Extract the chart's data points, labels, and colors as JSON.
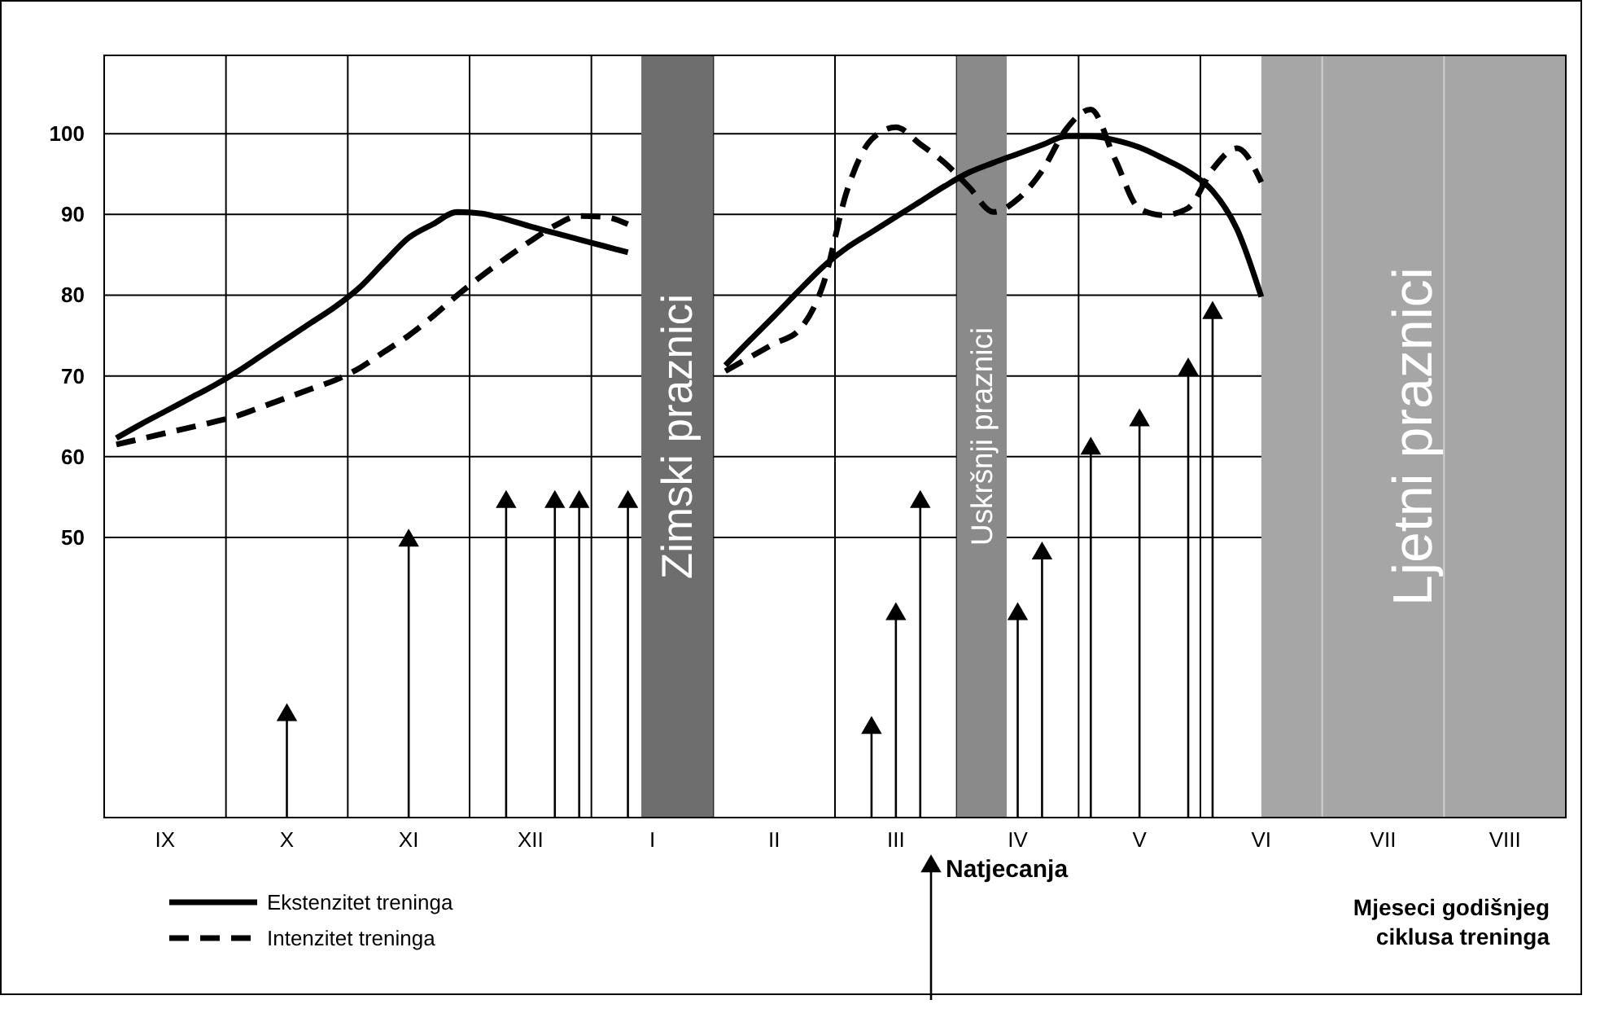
{
  "chart_data": {
    "type": "line",
    "xlabel": "Mjeseci godišnjeg ciklusa treninga",
    "ylim": [
      15.3,
      109.7
    ],
    "categories": [
      null,
      null,
      "IX",
      null,
      null,
      null,
      null,
      "X",
      null,
      null,
      null,
      null,
      "XI",
      null,
      null,
      null,
      null,
      "XII",
      null,
      null,
      null,
      null,
      "I",
      null,
      null,
      null,
      null,
      "II",
      null,
      null,
      null,
      null,
      "III",
      null,
      null,
      null,
      null,
      "IV",
      null,
      null,
      null,
      null,
      "V",
      null,
      null,
      null,
      null,
      "VI",
      null,
      null,
      null,
      null,
      "VII",
      null,
      null,
      null,
      null,
      "VIII",
      null,
      null
    ],
    "yticks": [
      50,
      60,
      70,
      80,
      90,
      100
    ],
    "grid": true,
    "legend": "bottom",
    "annotations": [
      "Zimski praznici",
      "Uskršnji praznici",
      "Ljetni praznici"
    ],
    "series": [
      {
        "name": "Ekstenzitet treninga",
        "color": "#000000",
        "line_style": "solid",
        "values": [
          62.3,
          64.0,
          65.6,
          67.2,
          68.8,
          70.6,
          72.6,
          74.6,
          76.6,
          78.6,
          81.0,
          84.1,
          87.1,
          88.8,
          90.3,
          90.1,
          89.4,
          88.5,
          87.7,
          86.9,
          86.1,
          85.3,
          null,
          null,
          null,
          71.3,
          74.4,
          77.4,
          80.5,
          83.5,
          85.9,
          87.8,
          89.7,
          91.6,
          93.5,
          95.2,
          96.4,
          97.5,
          98.6,
          99.7,
          99.7,
          99.2,
          98.3,
          96.9,
          95.3,
          92.9,
          88.2,
          79.8,
          null,
          null,
          null,
          null,
          null,
          null,
          null,
          null,
          null,
          null,
          null,
          null
        ]
      },
      {
        "name": "Intenzitet treninga",
        "color": "#000000",
        "line_style": "dashed",
        "values": [
          61.5,
          62.2,
          62.9,
          63.6,
          64.3,
          65.1,
          66.2,
          67.3,
          68.4,
          69.5,
          71.0,
          73.0,
          75.0,
          77.4,
          80.0,
          82.4,
          84.6,
          86.7,
          88.6,
          89.8,
          89.7,
          88.8,
          null,
          null,
          null,
          70.6,
          72.3,
          74.0,
          75.6,
          81.2,
          93.0,
          99.3,
          100.8,
          98.7,
          96.4,
          93.4,
          90.3,
          91.9,
          95.4,
          100.6,
          103,
          96.8,
          90.7,
          89.9,
          90.8,
          95.6,
          98.2,
          94,
          null,
          null,
          null,
          null,
          null,
          null,
          null,
          null,
          null,
          null,
          null,
          null
        ]
      },
      {
        "name": "Natjecanja",
        "type": "lollipop",
        "marker": "triangle",
        "color": "#000000",
        "values": [
          null,
          null,
          null,
          null,
          null,
          null,
          null,
          28,
          null,
          null,
          null,
          null,
          49.6,
          null,
          null,
          null,
          54.4,
          null,
          54.4,
          54.4,
          null,
          54.4,
          null,
          null,
          null,
          null,
          null,
          null,
          null,
          null,
          null,
          26.4,
          40.5,
          54.4,
          null,
          null,
          null,
          40.5,
          48,
          null,
          61,
          null,
          64.5,
          null,
          70.8,
          77.8,
          null,
          null,
          null,
          null,
          null,
          null,
          null,
          null,
          null,
          null,
          null,
          null,
          null,
          null
        ]
      }
    ]
  }
}
